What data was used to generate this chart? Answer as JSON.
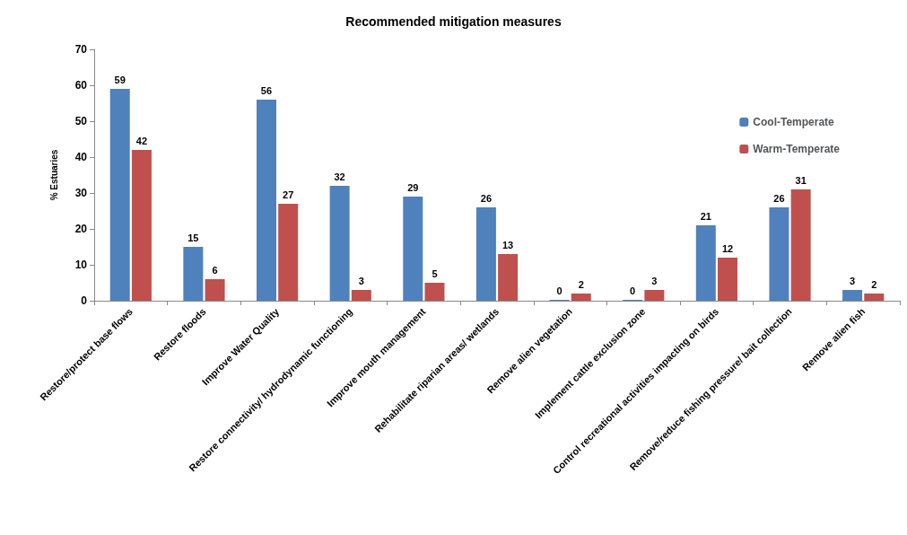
{
  "chart_data": {
    "type": "bar",
    "title": "Recommended mitigation measures",
    "ylabel": "% Estuaries",
    "categories": [
      "Restore/protect base flows",
      "Restore floods",
      "Improve Water Quality",
      "Restore connectivity/ hydrodynamic functioning",
      "Improve mouth management",
      "Rehabilitate riparian areas/ wetlands",
      "Remove alien vegetation",
      "Implement cattle exclusion zone",
      "Control recreational activities impacting on birds",
      "Remove/reduce fishing pressure/ bait collection",
      "Remove alien fish"
    ],
    "series": [
      {
        "name": "Cool-Temperate",
        "color": "#4f81bd",
        "values": [
          59,
          15,
          56,
          32,
          29,
          26,
          0,
          0,
          21,
          26,
          3
        ]
      },
      {
        "name": "Warm-Temperate",
        "color": "#c0504d",
        "values": [
          42,
          6,
          27,
          3,
          5,
          13,
          2,
          3,
          12,
          31,
          2
        ]
      }
    ],
    "ylim": [
      0,
      70
    ],
    "yticks": [
      0,
      10,
      20,
      30,
      40,
      50,
      60,
      70
    ],
    "grid": false,
    "legend": "top right",
    "data_labels": true
  }
}
